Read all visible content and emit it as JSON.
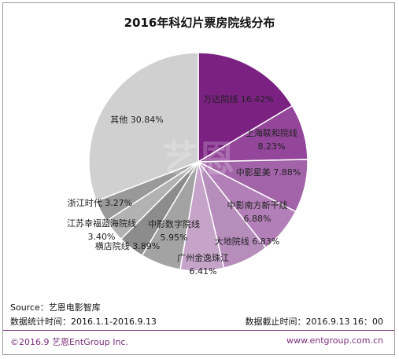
{
  "chart_data": {
    "type": "pie",
    "title": "2016年科幻片票房院线分布",
    "slices": [
      {
        "label": "万达院线",
        "value": 16.42,
        "value_text": "16.42%",
        "color": "#7b2182"
      },
      {
        "label": "上海联和院线",
        "value": 8.23,
        "value_text": "8.23%",
        "color": "#94469a"
      },
      {
        "label": "中影星美",
        "value": 7.88,
        "value_text": "7.88%",
        "color": "#a263a8"
      },
      {
        "label": "中影南方新干线",
        "value": 6.88,
        "value_text": "6.88%",
        "color": "#b37fb8"
      },
      {
        "label": "大地院线",
        "value": 6.83,
        "value_text": "6.83%",
        "color": "#b78dbc"
      },
      {
        "label": "广州金逸珠江",
        "value": 6.41,
        "value_text": "6.41%",
        "color": "#c6a4c9"
      },
      {
        "label": "中影数字院线",
        "value": 5.95,
        "value_text": "5.95%",
        "color": "#a3a3a3"
      },
      {
        "label": "横店院线",
        "value": 3.89,
        "value_text": "3.89%",
        "color": "#8c8c8c"
      },
      {
        "label": "江苏幸福蓝海院线",
        "value": 3.4,
        "value_text": "3.40%",
        "color": "#b2b2b2"
      },
      {
        "label": "浙江时代",
        "value": 3.27,
        "value_text": "3.27%",
        "color": "#999999"
      },
      {
        "label": "其他",
        "value": 30.84,
        "value_text": "30.84%",
        "color": "#d0d0d0"
      }
    ]
  },
  "footer": {
    "source": "Source：艺恩电影智库",
    "period": "数据统计时间：2016.1.1-2016.9.13",
    "cutoff": "数据截止时间：2016.9.13  16：00",
    "copyright": "©2016.9 艺恩EntGroup Inc.",
    "url": "www.entgroup.com.cn"
  }
}
